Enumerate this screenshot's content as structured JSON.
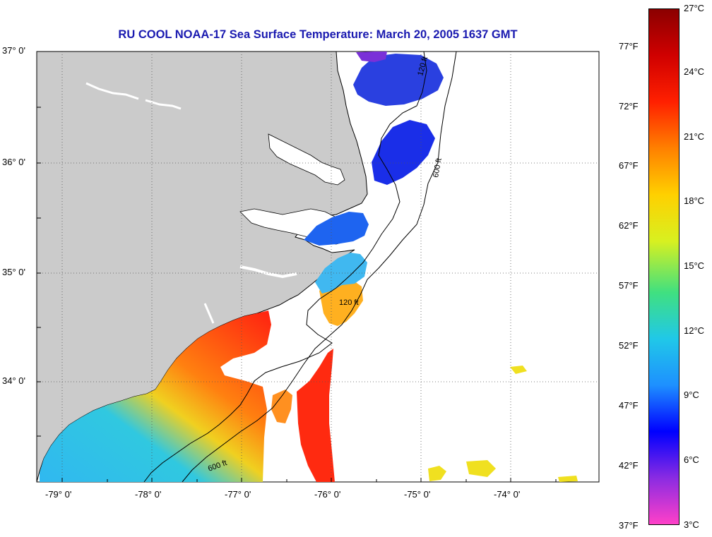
{
  "title": "RU COOL  NOAA-17  Sea Surface Temperature:  March 20, 2005 1637 GMT",
  "axes": {
    "lat_labels": [
      "37° 0'",
      "36° 0'",
      "35° 0'",
      "34° 0'"
    ],
    "lon_labels": [
      "-79° 0'",
      "-78° 0'",
      "-77° 0'",
      "-76° 0'",
      "-75° 0'",
      "-74° 0'"
    ]
  },
  "colorbar": {
    "fahrenheit": [
      "77°F",
      "72°F",
      "67°F",
      "62°F",
      "57°F",
      "52°F",
      "47°F",
      "42°F",
      "37°F"
    ],
    "celsius": [
      "27°C",
      "24°C",
      "21°C",
      "18°C",
      "15°C",
      "12°C",
      "9°C",
      "6°C",
      "3°C"
    ],
    "colors": [
      "#ff40c8",
      "#8a2be2",
      "#0000ff",
      "#1e90ff",
      "#20c8e8",
      "#40e080",
      "#d8f020",
      "#ffd000",
      "#ff8000",
      "#ff2000",
      "#d00000",
      "#8b0000"
    ]
  },
  "depth_contours": {
    "labels": [
      "120 ft",
      "600 ft"
    ]
  },
  "map": {
    "land_color": "#cbcbcb",
    "no_data_color": "#ffffff"
  }
}
